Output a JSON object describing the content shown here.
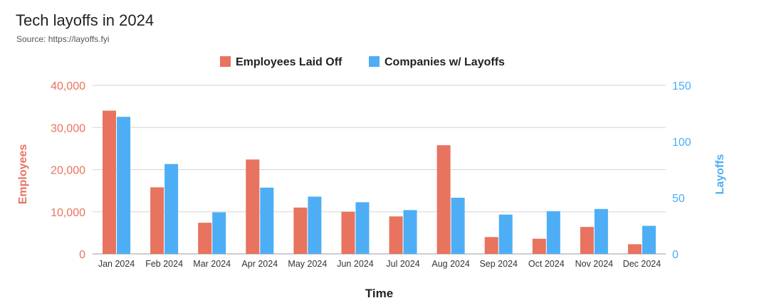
{
  "header": {
    "title": "Tech layoffs in 2024",
    "source": "Source: https://layoffs.fyi"
  },
  "chart_data": {
    "type": "bar",
    "xlabel": "Time",
    "categories": [
      "Jan 2024",
      "Feb 2024",
      "Mar 2024",
      "Apr 2024",
      "May 2024",
      "Jun 2024",
      "Jul 2024",
      "Aug 2024",
      "Sep 2024",
      "Oct 2024",
      "Nov 2024",
      "Dec 2024"
    ],
    "series": [
      {
        "name": "Employees Laid Off",
        "axis": "left",
        "color": "#E8735F",
        "values": [
          34000,
          15800,
          7400,
          22400,
          11000,
          10000,
          8900,
          25800,
          4000,
          3600,
          6400,
          2300
        ]
      },
      {
        "name": "Companies w/ Layoffs",
        "axis": "right",
        "color": "#4DAEF5",
        "values": [
          122,
          80,
          37,
          59,
          51,
          46,
          39,
          50,
          35,
          38,
          40,
          25
        ]
      }
    ],
    "y_left": {
      "label": "Employees",
      "ylim": [
        0,
        40000
      ],
      "ticks": [
        0,
        10000,
        20000,
        30000,
        40000
      ],
      "tick_labels": [
        "0",
        "10,000",
        "20,000",
        "30,000",
        "40,000"
      ],
      "color": "#E8735F"
    },
    "y_right": {
      "label": "Layoffs",
      "ylim": [
        0,
        150
      ],
      "ticks": [
        0,
        50,
        100,
        150
      ],
      "tick_labels": [
        "0",
        "50",
        "100",
        "150"
      ],
      "color": "#4DAEF5"
    },
    "grid": true,
    "legend": "top-center"
  }
}
